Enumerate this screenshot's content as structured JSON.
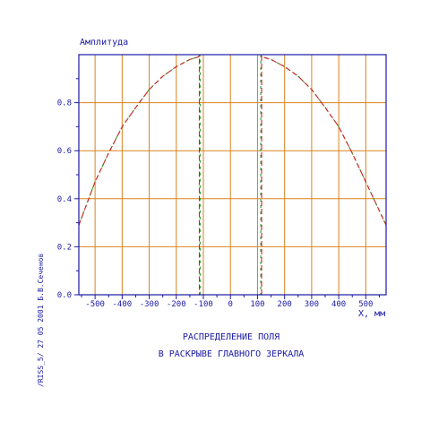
{
  "chart_data": {
    "type": "line",
    "ylabel": "Амплитуда",
    "xlabel": "X, мм",
    "title_line1": "РАСПРЕДЕЛЕНИЕ ПОЛЯ",
    "title_line2": "В РАСКРЫВЕ ГЛАВНОГО ЗЕРКАЛА",
    "side_note": "/RISS_5/  27 05 2001  Б.В.Сеченов",
    "xlim": [
      -560,
      575
    ],
    "ylim": [
      0.0,
      1.0
    ],
    "x_ticks": [
      -500,
      -400,
      -300,
      -200,
      -100,
      0,
      100,
      200,
      300,
      400,
      500
    ],
    "x_tick_labels": [
      "-500",
      "-400",
      "-300",
      "-200",
      "-100",
      "0",
      "100",
      "200",
      "300",
      "400",
      "500"
    ],
    "y_ticks": [
      0.0,
      0.2,
      0.4,
      0.6,
      0.8
    ],
    "y_tick_labels": [
      "0.0",
      "0.2",
      "0.4",
      "0.6",
      "0.8"
    ],
    "grid": true,
    "colors": {
      "axis": "#1a1aa6",
      "grid": "#d9821e",
      "series_a": "#cc2222",
      "series_b": "#22a022",
      "text": "#1a1aa6"
    },
    "series": [
      {
        "x": [
          -560,
          -500,
          -450,
          -400,
          -350,
          -300,
          -250,
          -200,
          -150,
          -120,
          -115,
          -115,
          115,
          115,
          120,
          150,
          200,
          250,
          300,
          350,
          400,
          450,
          500,
          575
        ],
        "values": [
          0.29,
          0.47,
          0.59,
          0.7,
          0.78,
          0.855,
          0.91,
          0.95,
          0.98,
          0.99,
          0.995,
          0.0,
          0.0,
          0.995,
          0.99,
          0.98,
          0.95,
          0.91,
          0.855,
          0.78,
          0.7,
          0.59,
          0.47,
          0.29
        ]
      },
      {
        "x": [
          -560,
          -500,
          -450,
          -400,
          -350,
          -300,
          -250,
          -200,
          -150,
          -120,
          -112,
          -112,
          112,
          112,
          120,
          150,
          200,
          250,
          300,
          350,
          400,
          450,
          500,
          575
        ],
        "values": [
          0.29,
          0.47,
          0.59,
          0.7,
          0.78,
          0.855,
          0.91,
          0.95,
          0.98,
          0.99,
          0.995,
          0.0,
          0.0,
          0.995,
          0.99,
          0.98,
          0.95,
          0.91,
          0.855,
          0.78,
          0.7,
          0.59,
          0.47,
          0.29
        ]
      }
    ]
  }
}
